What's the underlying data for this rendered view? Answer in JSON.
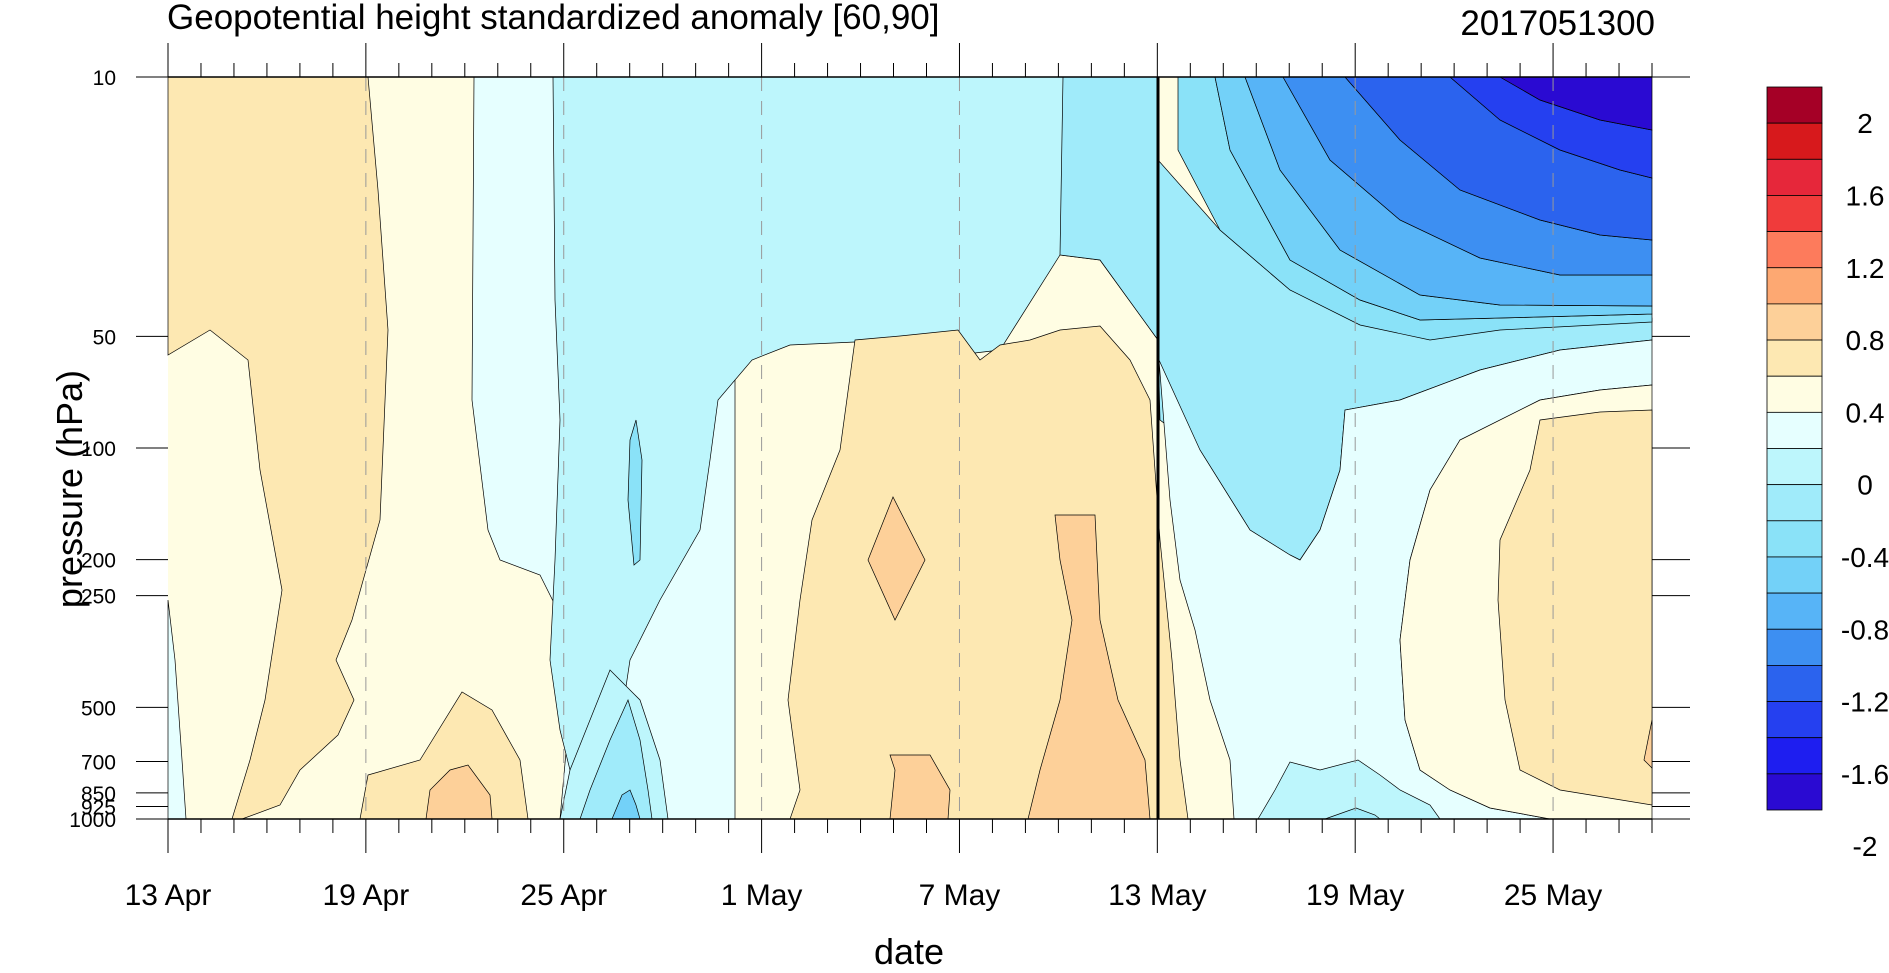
{
  "chart_data": {
    "type": "heatmap",
    "title": "Geopotential height standardized anomaly [60,90]",
    "subtitle": "2017051300",
    "xlabel": "date",
    "ylabel": "pressure (hPa)",
    "x_ticks": [
      "13 Apr",
      "19 Apr",
      "25 Apr",
      "1 May",
      "7 May",
      "13 May",
      "19 May",
      "25 May"
    ],
    "y_ticks": [
      "10",
      "50",
      "100",
      "200",
      "250",
      "500",
      "700",
      "850",
      "925",
      "1000"
    ],
    "y_scale": "log",
    "ylim": [
      1000,
      10
    ],
    "x_range_days": 45,
    "analysis_date": "13 May",
    "colorbar": {
      "labels": [
        "2",
        "1.6",
        "1.2",
        "0.8",
        "0.4",
        "0",
        "-0.4",
        "-0.8",
        "-1.2",
        "-1.6",
        "-2"
      ],
      "colors": [
        "#a50026",
        "#d7191c",
        "#e6273a",
        "#f03b3b",
        "#fd7b5c",
        "#fda872",
        "#fdd099",
        "#fde8b2",
        "#fffde3",
        "#e6ffff",
        "#bdf6fc",
        "#a0ebfa",
        "#8ae2f8",
        "#73d1f8",
        "#57b4f7",
        "#3d8ff2",
        "#2b63ee",
        "#2540f0",
        "#1e1ef0",
        "#2a0ad2"
      ]
    },
    "regions": [
      {
        "level": "0.4",
        "color": "#fde8b2",
        "desc": "13-19 Apr, full column"
      },
      {
        "level": "0.4-0.8",
        "color": "#fdd099",
        "desc": "22 Apr near surface"
      },
      {
        "level": "-0.4",
        "color": "#bdf6fc",
        "desc": "25 Apr - 12 May upper"
      },
      {
        "level": "0.4",
        "color": "#fde8b2",
        "desc": "2-12 May, 50-1000 hPa"
      },
      {
        "level": "0.8",
        "color": "#fdd099",
        "desc": "5 May and 10 May maxima"
      },
      {
        "level": "-2",
        "color": "#2a0ad2",
        "desc": "20-27 May stratosphere"
      },
      {
        "level": "0.4",
        "color": "#fde8b2",
        "desc": "22-27 May, 100-1000 hPa"
      }
    ]
  }
}
